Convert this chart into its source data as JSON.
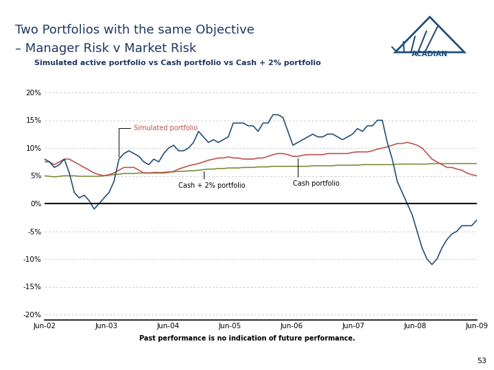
{
  "title_line1": "Two Portfolios with the same Objective",
  "title_line2": "– Manager Risk v Market Risk",
  "subtitle": "Simulated active portfolio vs Cash portfolio vs Cash + 2% portfolio",
  "footnote": "Past performance is no indication of future performance.",
  "page_number": "53",
  "ytick_values": [
    -0.2,
    -0.15,
    -0.1,
    -0.05,
    0.0,
    0.05,
    0.1,
    0.15,
    0.2
  ],
  "xlabels": [
    "Jun-02",
    "Jun-03",
    "Jun-04",
    "Jun-05",
    "Jun-06",
    "Jun-07",
    "Jun-08",
    "Jun-09"
  ],
  "background_color": "#ffffff",
  "title_color": "#1F3864",
  "subtitle_color": "#1F3864",
  "grid_color": "#aaaaaa",
  "zero_line_color": "#000000",
  "simulated_color": "#1F4E79",
  "cash_color": "#C0504D",
  "cashplus_color": "#7B8B3C",
  "simulated_label": "Simulated portfolio",
  "cash_label": "Cash portfolio",
  "cashplus_label": "Cash + 2% portfolio",
  "acadian_bar_color": "#1F3864",
  "top_bar_color": "#808080",
  "t": [
    0,
    1,
    2,
    3,
    4,
    5,
    6,
    7,
    8,
    9,
    10,
    11,
    12,
    13,
    14,
    15,
    16,
    17,
    18,
    19,
    20,
    21,
    22,
    23,
    24,
    25,
    26,
    27,
    28,
    29,
    30,
    31,
    32,
    33,
    34,
    35,
    36,
    37,
    38,
    39,
    40,
    41,
    42,
    43,
    44,
    45,
    46,
    47,
    48,
    49,
    50,
    51,
    52,
    53,
    54,
    55,
    56,
    57,
    58,
    59,
    60,
    61,
    62,
    63,
    64,
    65,
    66,
    67,
    68,
    69,
    70,
    71,
    72,
    73,
    74,
    75,
    76,
    77,
    78,
    79,
    80,
    81,
    82,
    83,
    84,
    85,
    86,
    87
  ],
  "simulated": [
    0.08,
    0.075,
    0.065,
    0.07,
    0.08,
    0.055,
    0.02,
    0.01,
    0.015,
    0.005,
    -0.01,
    0.0,
    0.01,
    0.02,
    0.04,
    0.08,
    0.09,
    0.095,
    0.09,
    0.085,
    0.075,
    0.07,
    0.08,
    0.075,
    0.09,
    0.1,
    0.105,
    0.095,
    0.095,
    0.1,
    0.11,
    0.13,
    0.12,
    0.11,
    0.115,
    0.11,
    0.115,
    0.12,
    0.145,
    0.145,
    0.145,
    0.14,
    0.14,
    0.13,
    0.145,
    0.145,
    0.16,
    0.16,
    0.155,
    0.13,
    0.105,
    0.11,
    0.115,
    0.12,
    0.125,
    0.12,
    0.12,
    0.125,
    0.125,
    0.12,
    0.115,
    0.12,
    0.125,
    0.135,
    0.13,
    0.14,
    0.14,
    0.15,
    0.15,
    0.11,
    0.08,
    0.04,
    0.02,
    0.0,
    -0.02,
    -0.05,
    -0.08,
    -0.1,
    -0.11,
    -0.1,
    -0.08,
    -0.065,
    -0.055,
    -0.05,
    -0.04,
    -0.04,
    -0.04,
    -0.03
  ],
  "cash": [
    0.075,
    0.075,
    0.07,
    0.075,
    0.08,
    0.08,
    0.075,
    0.07,
    0.065,
    0.06,
    0.055,
    0.052,
    0.05,
    0.052,
    0.055,
    0.06,
    0.065,
    0.065,
    0.065,
    0.06,
    0.055,
    0.055,
    0.055,
    0.055,
    0.055,
    0.056,
    0.058,
    0.062,
    0.065,
    0.068,
    0.07,
    0.072,
    0.075,
    0.078,
    0.08,
    0.082,
    0.082,
    0.084,
    0.082,
    0.082,
    0.08,
    0.08,
    0.08,
    0.082,
    0.082,
    0.085,
    0.088,
    0.09,
    0.09,
    0.088,
    0.085,
    0.085,
    0.087,
    0.088,
    0.088,
    0.088,
    0.088,
    0.09,
    0.09,
    0.09,
    0.09,
    0.09,
    0.092,
    0.093,
    0.093,
    0.093,
    0.095,
    0.098,
    0.1,
    0.102,
    0.105,
    0.108,
    0.108,
    0.11,
    0.108,
    0.105,
    0.1,
    0.09,
    0.08,
    0.075,
    0.07,
    0.065,
    0.065,
    0.062,
    0.06,
    0.055,
    0.052,
    0.05
  ],
  "cashplus": [
    0.05,
    0.049,
    0.048,
    0.049,
    0.05,
    0.05,
    0.05,
    0.049,
    0.049,
    0.049,
    0.049,
    0.049,
    0.05,
    0.051,
    0.052,
    0.053,
    0.054,
    0.054,
    0.054,
    0.055,
    0.055,
    0.055,
    0.056,
    0.056,
    0.056,
    0.057,
    0.057,
    0.058,
    0.058,
    0.059,
    0.059,
    0.06,
    0.061,
    0.062,
    0.062,
    0.063,
    0.063,
    0.064,
    0.064,
    0.064,
    0.065,
    0.065,
    0.065,
    0.066,
    0.066,
    0.066,
    0.067,
    0.067,
    0.067,
    0.067,
    0.067,
    0.067,
    0.067,
    0.067,
    0.068,
    0.068,
    0.068,
    0.068,
    0.068,
    0.069,
    0.069,
    0.069,
    0.069,
    0.069,
    0.07,
    0.07,
    0.07,
    0.07,
    0.07,
    0.07,
    0.07,
    0.071,
    0.071,
    0.071,
    0.071,
    0.071,
    0.071,
    0.071,
    0.072,
    0.072,
    0.072,
    0.072,
    0.072,
    0.072,
    0.072,
    0.072,
    0.072,
    0.072
  ]
}
